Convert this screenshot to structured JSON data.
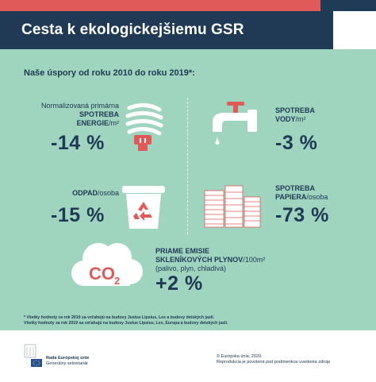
{
  "header": {
    "title": "Cesta k ekologickejšiemu GSR"
  },
  "subtitle": "Naše úspory od roku 2010 do roku 2019*:",
  "metrics": [
    {
      "label_line1": "Normalizovaná primárna",
      "label_line2": "SPOTREBA",
      "label_line3": "ENERGIE",
      "label_unit": "/m²",
      "value": "-14 %",
      "icon": "energy-saving-bulb-icon"
    },
    {
      "label_line1": "SPOTREBA",
      "label_line2": "VODY",
      "label_unit": "/m²",
      "value": "-3 %",
      "icon": "water-tap-icon"
    },
    {
      "label_line1": "ODPAD",
      "label_unit": "/osoba",
      "value": "-15 %",
      "icon": "recycling-bin-icon"
    },
    {
      "label_line1": "SPOTREBA",
      "label_line2": "PAPIERA",
      "label_unit": "/osoba",
      "value": "-73 %",
      "icon": "paper-stacks-icon"
    },
    {
      "label_line1": "PRIAME EMISIE",
      "label_line2": "SKLENÍKOVÝCH PLYNOV",
      "label_unit": "/100m²",
      "label_line3": "(palivo, plyn, chladivá)",
      "value": "+2 %",
      "icon": "co2-cloud-icon",
      "icon_text": "CO",
      "icon_sub": "2"
    }
  ],
  "footnote": {
    "line1": "* Všetky hodnoty za rok 2010 sa vzťahujú na budovy Justus Lipsius, Lex a budovy detských jaslí.",
    "line2": "Všetky hodnoty za rok 2019 sa vzťahujú na budovy Justus Lipsius, Lex, Europa a budovy detských jaslí."
  },
  "footer": {
    "org_line1": "Rada Európskej únie",
    "org_line2": "Generálny sekretariát",
    "copyright_line1": "© Európska únia, 2020.",
    "copyright_line2": "Reprodukcia je povolená pod podmienkou uvedenia zdroja"
  },
  "colors": {
    "navy": "#203a55",
    "red": "#e05a5a",
    "mint": "#9fd4bf",
    "white": "#ffffff"
  }
}
